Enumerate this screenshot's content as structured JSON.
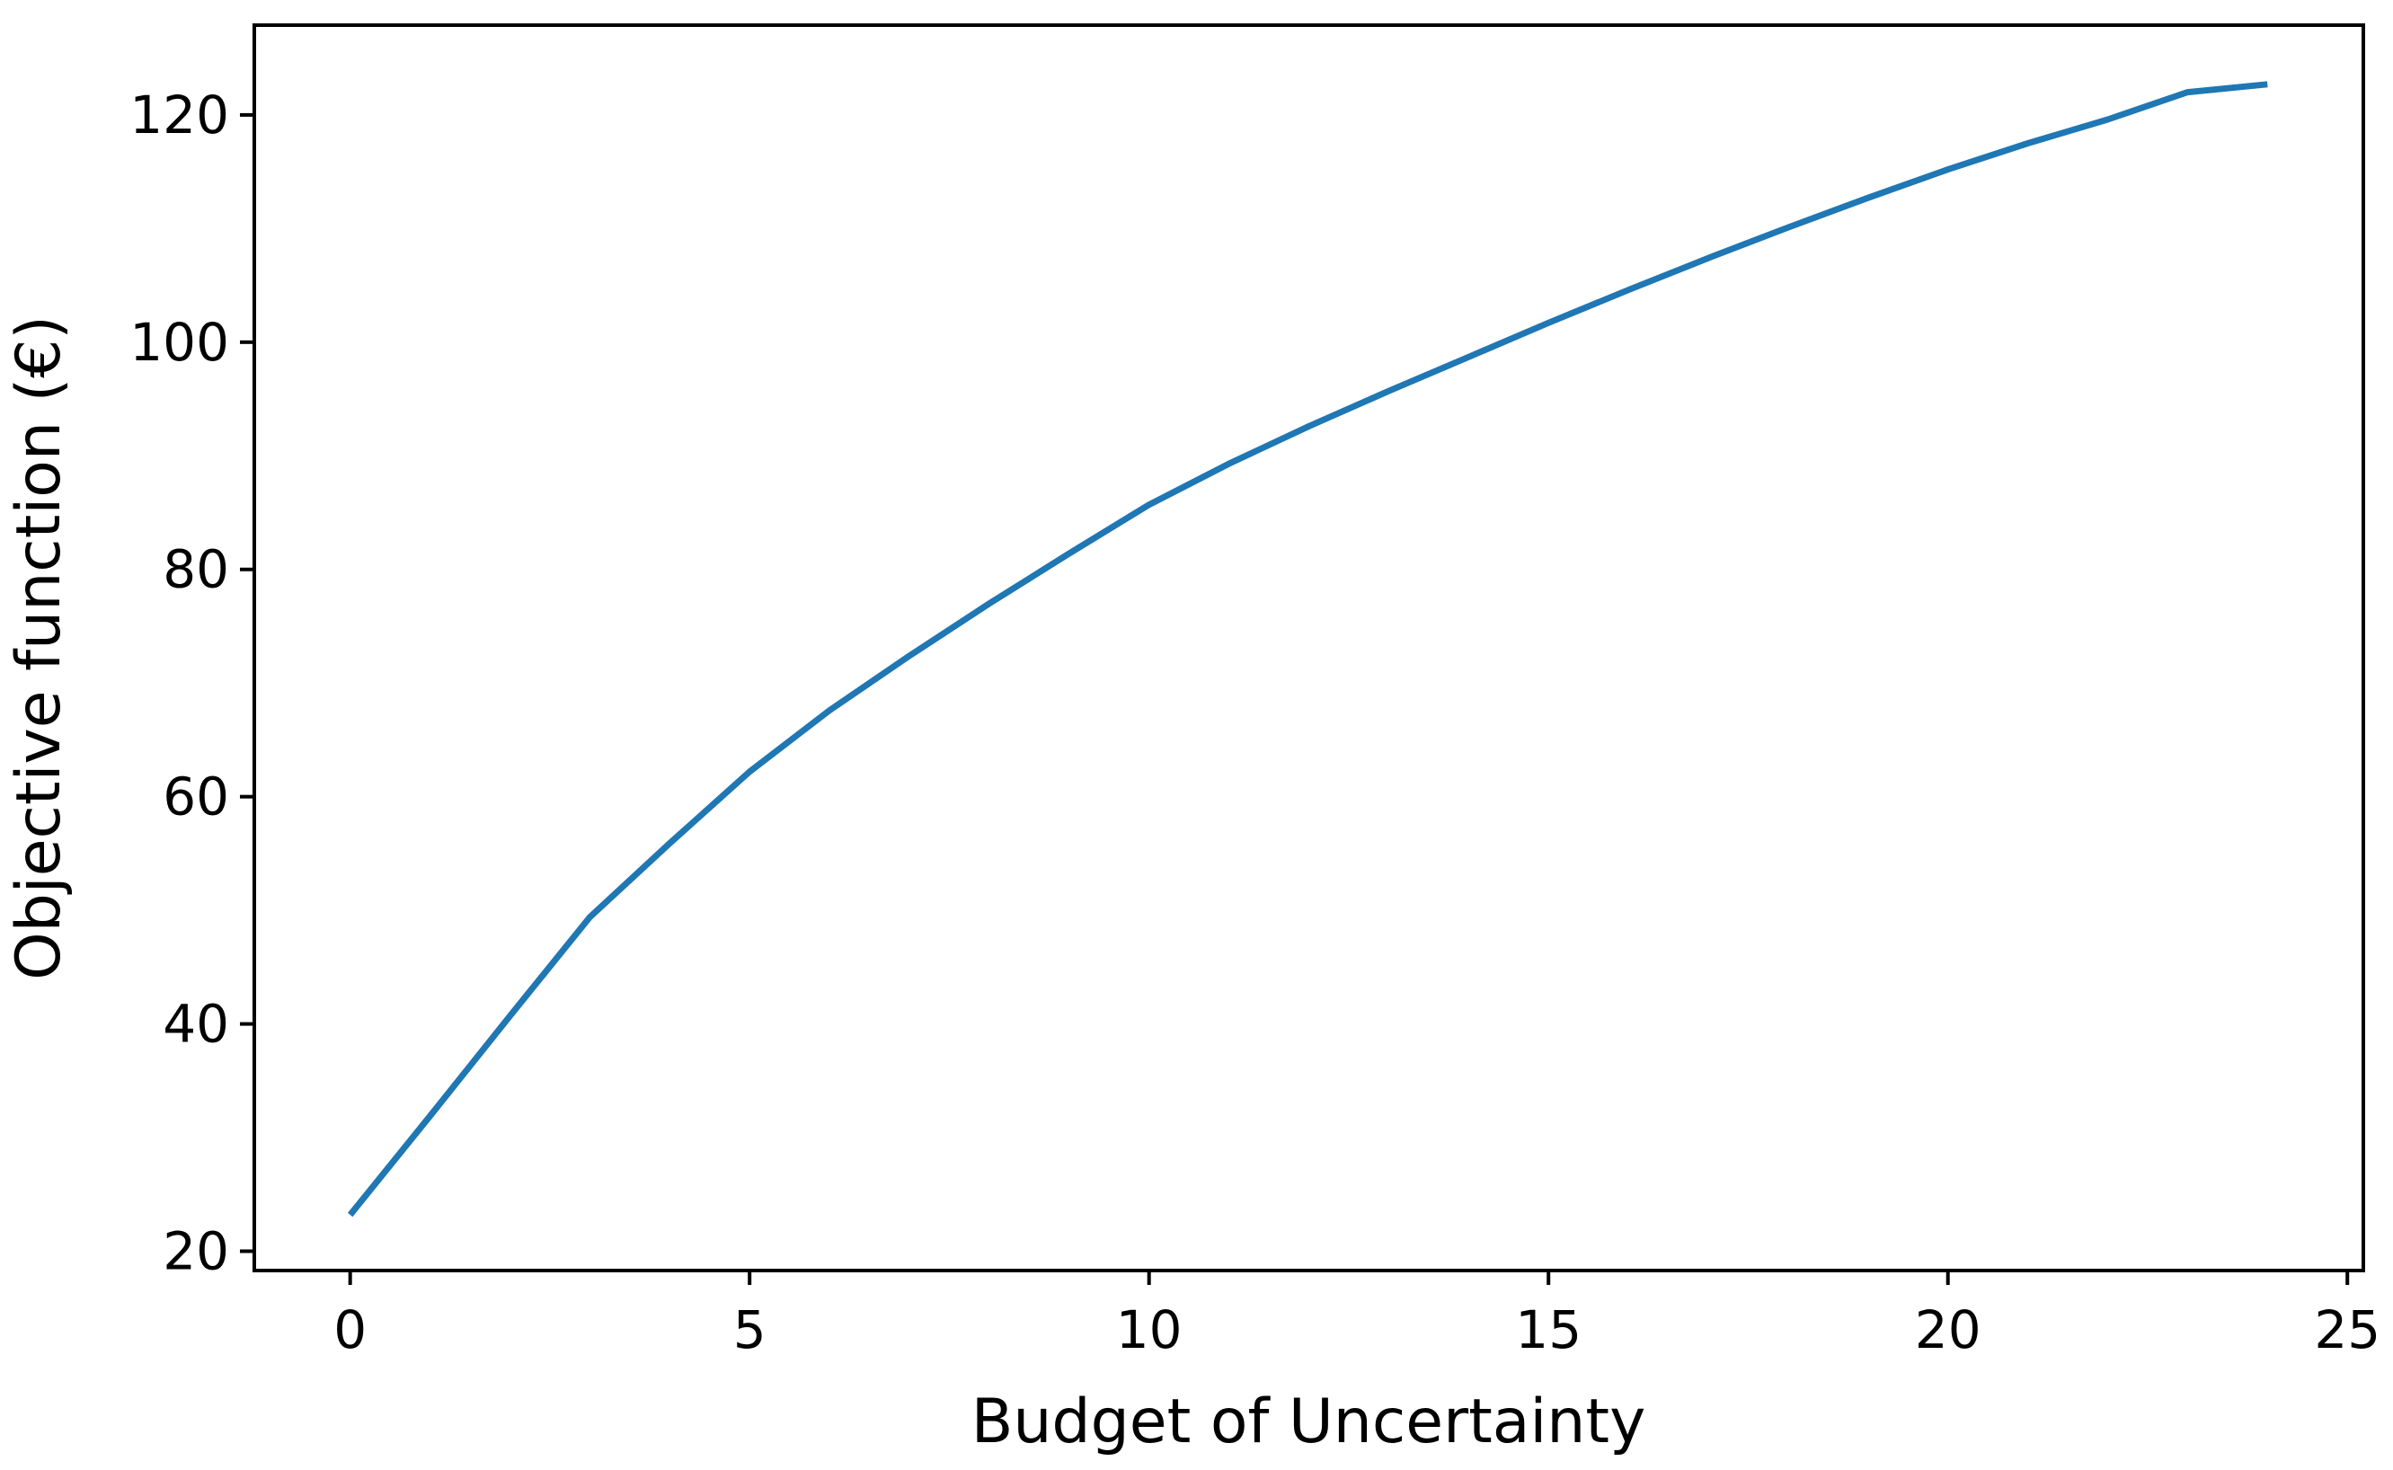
{
  "figure": {
    "background_color": "#ffffff",
    "axis_color": "#000000"
  },
  "chart_data": {
    "type": "line",
    "xlabel": "Budget of Uncertainty",
    "ylabel": "Objective function (€)",
    "x": [
      0,
      1,
      2,
      3,
      4,
      5,
      6,
      7,
      8,
      9,
      10,
      11,
      12,
      13,
      14,
      15,
      16,
      17,
      18,
      19,
      20,
      21,
      22,
      23,
      24
    ],
    "series": [
      {
        "name": "Objective function",
        "color": "#1f77b4",
        "values": [
          23.2,
          31.9,
          40.7,
          49.4,
          55.9,
          62.2,
          67.6,
          72.4,
          77.0,
          81.4,
          85.7,
          89.3,
          92.6,
          95.7,
          98.7,
          101.7,
          104.6,
          107.4,
          110.1,
          112.7,
          115.2,
          117.5,
          119.6,
          122.0,
          122.7
        ]
      }
    ],
    "xlim": [
      -1.2,
      25.2
    ],
    "ylim": [
      18.3,
      127.9
    ],
    "xticks": [
      0,
      5,
      10,
      15,
      20,
      25
    ],
    "yticks": [
      20,
      40,
      60,
      80,
      100,
      120
    ],
    "grid": false,
    "legend_position": "none"
  }
}
